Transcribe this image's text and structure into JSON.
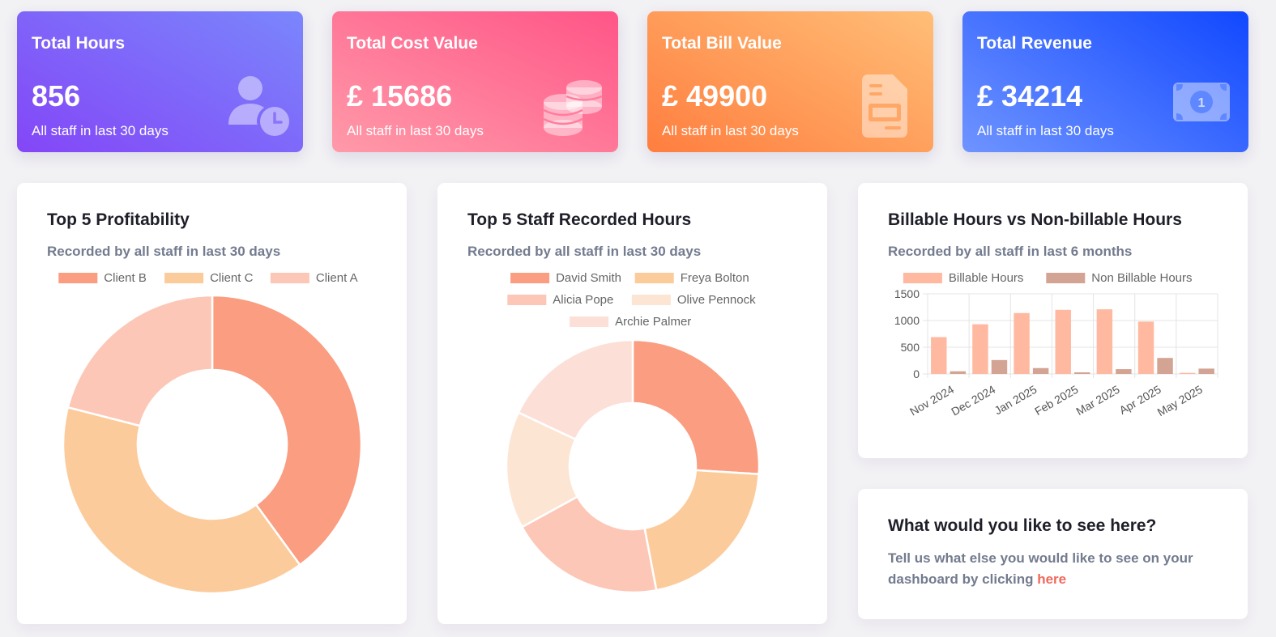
{
  "cards": {
    "hours": {
      "title": "Total Hours",
      "value": "856",
      "sub": "All staff in last 30 days",
      "icon": "user-clock-icon"
    },
    "cost": {
      "title": "Total Cost Value",
      "value": "£ 15686",
      "sub": "All staff in last 30 days",
      "icon": "coins-icon"
    },
    "bill": {
      "title": "Total Bill Value",
      "value": "£ 49900",
      "sub": "All staff in last 30 days",
      "icon": "invoice-icon"
    },
    "revenue": {
      "title": "Total Revenue",
      "value": "£ 34214",
      "sub": "All staff in last 30 days",
      "icon": "banknote-icon"
    }
  },
  "profitability": {
    "title": "Top 5 Profitability",
    "subtitle": "Recorded by all staff in last 30 days"
  },
  "staff_hours": {
    "title": "Top 5 Staff Recorded Hours",
    "subtitle": "Recorded by all staff in last 30 days"
  },
  "billable": {
    "title": "Billable Hours vs Non-billable Hours",
    "subtitle": "Recorded by all staff in last 6 months"
  },
  "feedback": {
    "title": "What would you like to see here?",
    "text": "Tell us what else you would like to see on your dashboard by clicking ",
    "link": "here"
  },
  "colors": {
    "d1": "#fa9d80",
    "d2": "#fccb9b",
    "d3": "#fcc7b6",
    "d4": "#fde5d4",
    "d5": "#fce0d8",
    "billable": "#ffb9a1",
    "nonbillable": "#d3a493"
  },
  "chart_data": [
    {
      "type": "pie",
      "variant": "doughnut",
      "labels": [
        "Client B",
        "Client C",
        "Client A"
      ],
      "values": [
        40,
        39,
        21
      ],
      "legend": "top"
    },
    {
      "type": "pie",
      "variant": "doughnut",
      "labels": [
        "David Smith",
        "Freya Bolton",
        "Alicia Pope",
        "Olive Pennock",
        "Archie Palmer"
      ],
      "values": [
        26,
        21,
        20,
        15,
        18
      ],
      "legend": "top"
    },
    {
      "type": "bar",
      "categories": [
        "Nov 2024",
        "Dec 2024",
        "Jan 2025",
        "Feb 2025",
        "Mar 2025",
        "Apr 2025",
        "May 2025"
      ],
      "series": [
        {
          "name": "Billable Hours",
          "values": [
            690,
            930,
            1140,
            1200,
            1210,
            980,
            20
          ]
        },
        {
          "name": "Non Billable Hours",
          "values": [
            50,
            260,
            110,
            30,
            90,
            300,
            100
          ]
        }
      ],
      "ylim": [
        0,
        1500
      ],
      "yticks": [
        "0",
        "500",
        "1000",
        "1500"
      ],
      "grid": true,
      "legend": "top"
    }
  ]
}
